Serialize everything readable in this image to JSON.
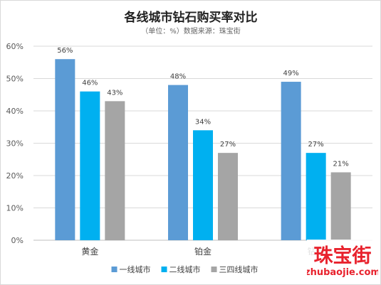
{
  "chart_data": {
    "type": "bar",
    "title": "各线城市钻石购买率对比",
    "subtitle": "（单位：%）数据来源：珠宝街",
    "categories": [
      "黄金",
      "铂金",
      "钻石"
    ],
    "series": [
      {
        "name": "一线城市",
        "values": [
          56,
          48,
          49
        ],
        "labels": [
          "56%",
          "48%",
          "49%"
        ]
      },
      {
        "name": "二线城市",
        "values": [
          46,
          34,
          27
        ],
        "labels": [
          "46%",
          "34%",
          "27%"
        ]
      },
      {
        "name": "三四线城市",
        "values": [
          43,
          27,
          21
        ],
        "labels": [
          "43%",
          "27%",
          "21%"
        ]
      }
    ],
    "colors": [
      "#5b9bd5",
      "#00b0f0",
      "#a5a5a5"
    ],
    "ylim": [
      0,
      60
    ],
    "yticks": [
      0,
      10,
      20,
      30,
      40,
      50,
      60
    ],
    "ytick_labels": [
      "0%",
      "10%",
      "20%",
      "30%",
      "40%",
      "50%",
      "60%"
    ],
    "grid": true,
    "legend_position": "bottom"
  },
  "watermark": {
    "logo_text": "珠宝街",
    "url_text": "zhubaojie.com",
    "color": "#e8222d"
  }
}
